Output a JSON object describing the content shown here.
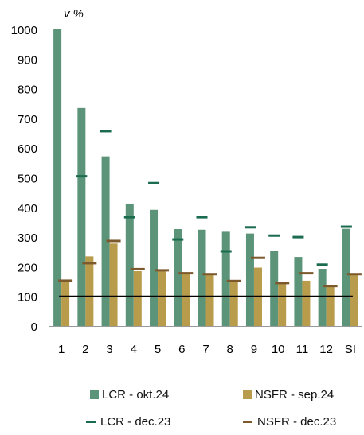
{
  "chart_data": {
    "type": "bar",
    "unit_label": "v %",
    "categories": [
      "1",
      "2",
      "3",
      "4",
      "5",
      "6",
      "7",
      "8",
      "9",
      "10",
      "11",
      "12",
      "SI"
    ],
    "ylim": [
      0,
      1000
    ],
    "yticks": [
      0,
      100,
      200,
      300,
      400,
      500,
      600,
      700,
      800,
      900,
      1000
    ],
    "reference_line": 100,
    "series": [
      {
        "name": "LCR - okt.24",
        "kind": "bar",
        "color": "#5b9478",
        "values": [
          1000,
          735,
          572,
          413,
          392,
          327,
          325,
          318,
          312,
          252,
          233,
          193,
          328
        ]
      },
      {
        "name": "NSFR - sep.24",
        "kind": "bar",
        "color": "#b99b4c",
        "values": [
          155,
          235,
          278,
          185,
          187,
          181,
          173,
          153,
          197,
          147,
          153,
          138,
          172
        ]
      },
      {
        "name": "LCR - dec.23",
        "kind": "marker",
        "color": "#1b6b4f",
        "values": [
          null,
          505,
          657,
          367,
          482,
          292,
          367,
          252,
          333,
          305,
          300,
          207,
          335
        ]
      },
      {
        "name": "NSFR - dec.23",
        "kind": "marker",
        "color": "#7d5a2e",
        "values": [
          153,
          212,
          287,
          192,
          188,
          178,
          175,
          152,
          230,
          145,
          178,
          135,
          175
        ]
      }
    ]
  }
}
